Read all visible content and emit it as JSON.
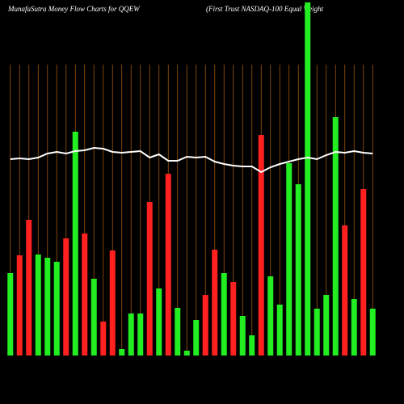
{
  "chart_data": {
    "type": "bar",
    "title": "MunafaSutra  Money Flow  Charts for QQEW",
    "subtitle": "(First Trust NASDAQ-100   Equal Weight",
    "categories": [
      null,
      null,
      null,
      null,
      null,
      null,
      null,
      null,
      null,
      null,
      null,
      null,
      null,
      null,
      null,
      null,
      null,
      null,
      null,
      null,
      null,
      null,
      null,
      null,
      null,
      null,
      null,
      null,
      null,
      null,
      null,
      null,
      null,
      null,
      null,
      null,
      null,
      null,
      null,
      null
    ],
    "values": [
      102,
      124,
      168,
      125,
      121,
      116,
      145,
      277,
      151,
      95,
      42,
      130,
      8,
      52,
      52,
      190,
      83,
      225,
      59,
      6,
      44,
      75,
      131,
      102,
      91,
      49,
      25,
      273,
      98,
      63,
      238,
      212,
      437,
      58,
      75,
      295,
      161,
      70,
      206,
      58
    ],
    "colors": [
      "#22ee22",
      "#ff2020",
      "#ff2020",
      "#22ee22",
      "#22ee22",
      "#22ee22",
      "#ff2020",
      "#22ee22",
      "#ff2020",
      "#22ee22",
      "#ff2020",
      "#ff2020",
      "#22ee22",
      "#22ee22",
      "#22ee22",
      "#ff2020",
      "#22ee22",
      "#ff2020",
      "#22ee22",
      "#22ee22",
      "#22ee22",
      "#ff2020",
      "#ff2020",
      "#22ee22",
      "#ff2020",
      "#22ee22",
      "#22ee22",
      "#ff2020",
      "#22ee22",
      "#22ee22",
      "#22ee22",
      "#22ee22",
      "#22ee22",
      "#22ee22",
      "#22ee22",
      "#22ee22",
      "#ff2020",
      "#22ee22",
      "#ff2020",
      "#22ee22"
    ],
    "line_values": [
      243,
      244,
      243,
      245,
      250,
      252,
      250,
      253,
      254,
      257,
      256,
      252,
      251,
      252,
      253,
      245,
      249,
      241,
      241,
      246,
      245,
      246,
      240,
      237,
      235,
      234,
      234,
      227,
      233,
      237,
      240,
      243,
      245,
      243,
      248,
      252,
      251,
      253,
      251,
      250
    ],
    "line_color": "#ffffff",
    "ylim": [
      0,
      440
    ],
    "grid": true
  }
}
